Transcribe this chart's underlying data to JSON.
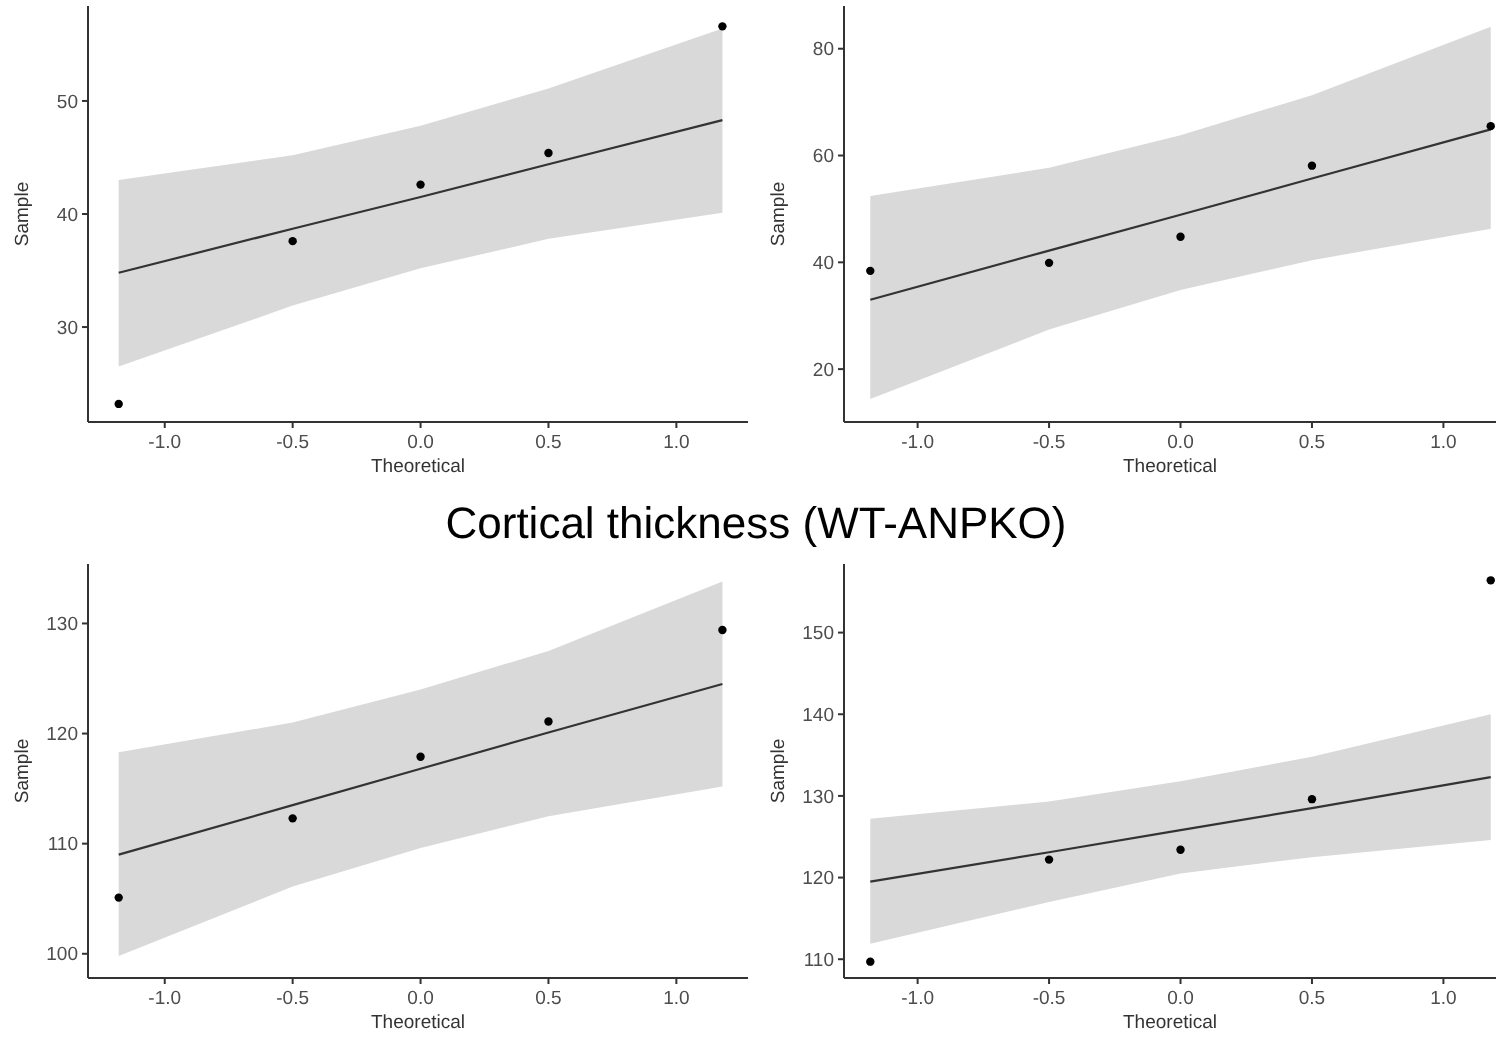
{
  "chart_data": [
    {
      "type": "scatter",
      "xlabel": "Theoretical",
      "ylabel": "Sample",
      "xlim": [
        -1.3,
        1.28
      ],
      "xticks": [
        {
          "value": -1,
          "label": "-1.0"
        },
        {
          "value": -0.5,
          "label": "-0.5"
        },
        {
          "value": 0,
          "label": "0.0"
        },
        {
          "value": 0.5,
          "label": "0.5"
        },
        {
          "value": 1,
          "label": "1.0"
        }
      ],
      "ylim": [
        21.6,
        58.4
      ],
      "yticks": [
        30,
        40,
        50
      ],
      "grid": false,
      "series": [
        {
          "type": "line",
          "color": "#333333",
          "x": [
            -1.18,
            -0.5,
            0,
            0.5,
            1.18
          ],
          "values": [
            34.8,
            38.7,
            41.5,
            44.4,
            48.3
          ],
          "lower": [
            26.5,
            31.9,
            35.2,
            37.8,
            40.1
          ],
          "upper": [
            43.0,
            45.2,
            47.8,
            51.1,
            56.4
          ]
        },
        {
          "type": "scatter",
          "color": "#000000",
          "x": [
            -1.18,
            -0.5,
            0,
            0.5,
            1.18
          ],
          "values": [
            23.2,
            37.6,
            42.6,
            45.4,
            56.6
          ]
        }
      ]
    },
    {
      "type": "scatter",
      "xlabel": "Theoretical",
      "ylabel": "Sample",
      "xlim": [
        -1.28,
        1.2
      ],
      "xticks": [
        {
          "value": -1,
          "label": "-1.0"
        },
        {
          "value": -0.5,
          "label": "-0.5"
        },
        {
          "value": 0,
          "label": "0.0"
        },
        {
          "value": 0.5,
          "label": "0.5"
        },
        {
          "value": 1,
          "label": "1.0"
        }
      ],
      "ylim": [
        10.1,
        88
      ],
      "yticks": [
        20,
        40,
        60,
        80
      ],
      "grid": false,
      "series": [
        {
          "type": "line",
          "color": "#333333",
          "x": [
            -1.18,
            -0.5,
            0,
            0.5,
            1.18
          ],
          "values": [
            33.0,
            42.2,
            48.9,
            55.7,
            64.9
          ],
          "lower": [
            14.4,
            27.4,
            34.8,
            40.4,
            46.3
          ],
          "upper": [
            52.4,
            57.7,
            63.8,
            71.3,
            84.1
          ]
        },
        {
          "type": "scatter",
          "color": "#000000",
          "x": [
            -1.18,
            -0.5,
            0,
            0.5,
            1.18
          ],
          "values": [
            38.4,
            39.9,
            44.8,
            58.1,
            65.5
          ]
        }
      ]
    },
    {
      "type": "scatter",
      "title": "Cortical thickness (WT-ANPKO)",
      "xlabel": "Theoretical",
      "ylabel": "Sample",
      "xlim": [
        -1.3,
        1.28
      ],
      "xticks": [
        {
          "value": -1,
          "label": "-1.0"
        },
        {
          "value": -0.5,
          "label": "-0.5"
        },
        {
          "value": 0,
          "label": "0.0"
        },
        {
          "value": 0.5,
          "label": "0.5"
        },
        {
          "value": 1,
          "label": "1.0"
        }
      ],
      "ylim": [
        97.8,
        135.4
      ],
      "yticks": [
        100,
        110,
        120,
        130
      ],
      "grid": false,
      "series": [
        {
          "type": "line",
          "color": "#333333",
          "x": [
            -1.18,
            -0.5,
            0,
            0.5,
            1.18
          ],
          "values": [
            109.0,
            113.5,
            116.8,
            120.1,
            124.5
          ],
          "lower": [
            99.8,
            106.1,
            109.6,
            112.5,
            115.2
          ],
          "upper": [
            118.3,
            121.0,
            124.0,
            127.5,
            133.8
          ]
        },
        {
          "type": "scatter",
          "color": "#000000",
          "x": [
            -1.18,
            -0.5,
            0,
            0.5,
            1.18
          ],
          "values": [
            105.1,
            112.3,
            117.9,
            121.1,
            129.4
          ]
        }
      ]
    },
    {
      "type": "scatter",
      "xlabel": "Theoretical",
      "ylabel": "Sample",
      "xlim": [
        -1.28,
        1.2
      ],
      "xticks": [
        {
          "value": -1,
          "label": "-1.0"
        },
        {
          "value": -0.5,
          "label": "-0.5"
        },
        {
          "value": 0,
          "label": "0.0"
        },
        {
          "value": 0.5,
          "label": "0.5"
        },
        {
          "value": 1,
          "label": "1.0"
        }
      ],
      "ylim": [
        107.7,
        158.4
      ],
      "yticks": [
        110,
        120,
        130,
        140,
        150
      ],
      "grid": false,
      "series": [
        {
          "type": "line",
          "color": "#333333",
          "x": [
            -1.18,
            -0.5,
            0,
            0.5,
            1.18
          ],
          "values": [
            119.5,
            123.1,
            125.8,
            128.5,
            132.3
          ],
          "lower": [
            111.9,
            117.0,
            120.5,
            122.5,
            124.6
          ],
          "upper": [
            127.2,
            129.3,
            131.8,
            134.8,
            140.0
          ]
        },
        {
          "type": "scatter",
          "color": "#000000",
          "x": [
            -1.18,
            -0.5,
            0,
            0.5,
            1.18
          ],
          "values": [
            109.7,
            122.2,
            123.4,
            129.6,
            156.4
          ]
        }
      ]
    }
  ]
}
